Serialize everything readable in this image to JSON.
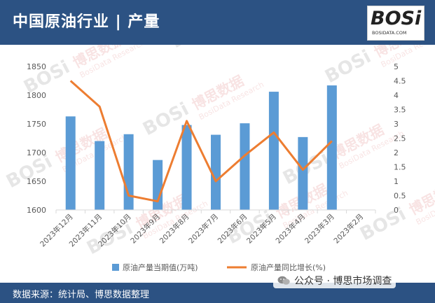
{
  "header": {
    "title": "中国原油行业 | 产量",
    "logo_main": "BOSi",
    "logo_sub": "BOSIDATA.COM"
  },
  "footer": {
    "source": "数据来源：统计局、博思数据整理",
    "wechat_label": "公众号 · 博思市场调查"
  },
  "watermark": {
    "latin": "BOSi",
    "chinese": "博思数据",
    "english": "BosiData Research"
  },
  "colors": {
    "header_bg": "#2c5283",
    "bar": "#5b9bd5",
    "line": "#ed7d31",
    "grid": "#d9d9d9",
    "axis_text": "#595959"
  },
  "chart_data": {
    "type": "bar",
    "categories": [
      "2023年12月",
      "2023年11月",
      "2023年10月",
      "2023年9月",
      "2023年8月",
      "2023年7月",
      "2023年6月",
      "2023年5月",
      "2023年4月",
      "2023年3月",
      "2023年2月"
    ],
    "series": [
      {
        "name": "原油产量当期值(万吨)",
        "type": "bar",
        "axis": "left",
        "values": [
          1763,
          1720,
          1732,
          1687,
          1748,
          1731,
          1751,
          1806,
          1727,
          1817,
          null
        ]
      },
      {
        "name": "原油产量同比增长(%)",
        "type": "line",
        "axis": "right",
        "values": [
          4.5,
          3.6,
          0.5,
          0.3,
          3.1,
          1.0,
          1.9,
          2.7,
          1.4,
          2.4,
          null
        ]
      }
    ],
    "y_left": {
      "min": 1600,
      "max": 1850,
      "ticks": [
        1600,
        1650,
        1700,
        1750,
        1800,
        1850
      ]
    },
    "y_right": {
      "min": 0,
      "max": 5,
      "ticks": [
        0,
        0.5,
        1,
        1.5,
        2,
        2.5,
        3,
        3.5,
        4,
        4.5,
        5
      ]
    },
    "legend_position": "bottom",
    "grid": false
  }
}
